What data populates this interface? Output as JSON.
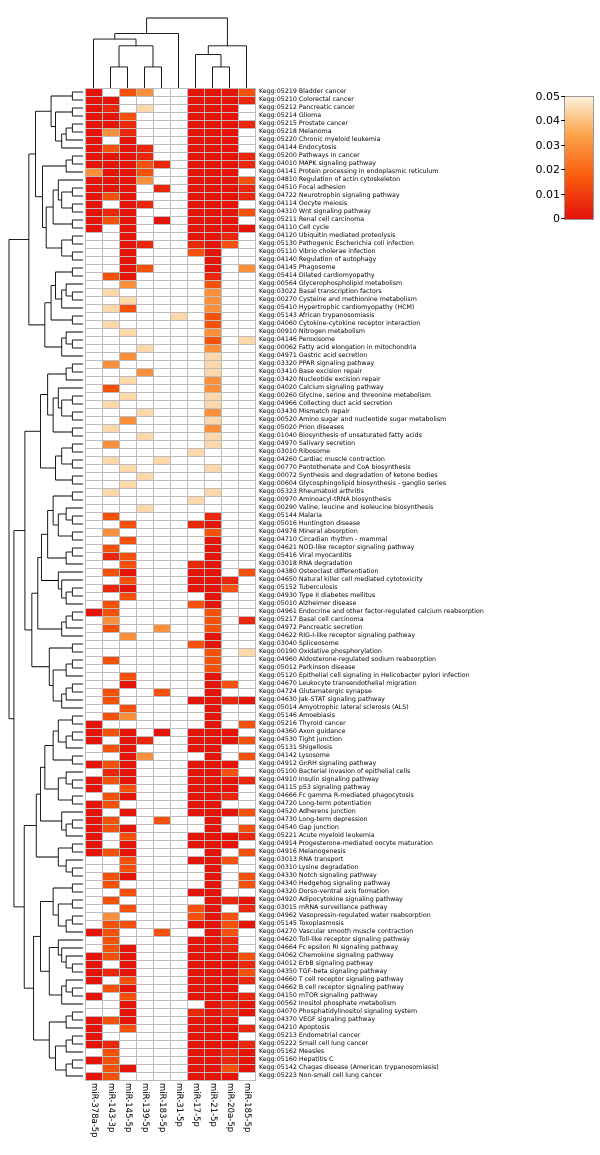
{
  "figure": {
    "description": "Clustered heatmap of KEGG pathway enrichment p-values for 10 miRNAs with row and column dendrograms and a color key"
  },
  "chart_data": {
    "type": "heatmap",
    "vmax": 0.05,
    "legend": {
      "ticks": [
        "0.05",
        "0.04",
        "0.03",
        "0.02",
        "0.01",
        "0"
      ],
      "min": 0,
      "max": 0.05,
      "position": "top-right"
    },
    "colorscale_stops": [
      [
        0,
        "#e3120b"
      ],
      [
        0.35,
        "#f95d0e"
      ],
      [
        0.7,
        "#fca54e"
      ],
      [
        1,
        "#fdf1d9"
      ]
    ],
    "na_color": "#ffffff",
    "columns": [
      "miR-378a-5p",
      "miR-143-3p",
      "miR-145-5p",
      "miR-139-5p",
      "miR-183-5p",
      "miR-31-5p",
      "miR-17-5p",
      "miR-21-5p",
      "miR-20a-5p",
      "miR-185-5p"
    ],
    "col_tree": [
      [
        [
          0,
          [
            [
              1,
              2
            ],
            [
              3,
              4
            ]
          ]
        ],
        5
      ],
      [
        [
          6,
          [
            7,
            8
          ]
        ],
        9
      ]
    ],
    "rows": [
      "Kegg:05219 Bladder cancer",
      "Kegg:05210 Colorectal cancer",
      "Kegg:05212 Pancreatic cancer",
      "Kegg:05214 Glioma",
      "Kegg:05215 Prostate cancer",
      "Kegg:05218 Melanoma",
      "Kegg:05220 Chronic myeloid leukemia",
      "Kegg:04144 Endocytosis",
      "Kegg:05200 Pathways in cancer",
      "Kegg:04010 MAPK signaling pathway",
      "Kegg:04141 Protein processing in endoplasmic reticulum",
      "Kegg:04810 Regulation of actin cytoskeleton",
      "Kegg:04510 Focal adhesion",
      "Kegg:04722 Neurotrophin signaling pathway",
      "Kegg:04114 Oocyte meiosis",
      "Kegg:04310 Wnt signaling pathway",
      "Kegg:05211 Renal cell carcinoma",
      "Kegg:04110 Cell cycle",
      "Kegg:04120 Ubiquitin mediated proteolysis",
      "Kegg:05130 Pathogenic Escherichia coli infection",
      "Kegg:05110 Vibrio cholerae infection",
      "Kegg:04140 Regulation of autophagy",
      "Kegg:04145 Phagosome",
      "Kegg:05414 Dilated cardiomyopathy",
      "Kegg:00564 Glycerophospholipid metabolism",
      "Kegg:03022 Basal transcription factors",
      "Kegg:00270 Cysteine and methionine metabolism",
      "Kegg:05410 Hypertrophic cardiomyopathy (HCM)",
      "Kegg:05143 African trypanosomiasis",
      "Kegg:04060 Cytokine-cytokine receptor interaction",
      "Kegg:00910 Nitrogen metabolism",
      "Kegg:04146 Peroxisome",
      "Kegg:00062 Fatty acid elongation in mitochondria",
      "Kegg:04971 Gastric acid secretion",
      "Kegg:03320 PPAR signaling pathway",
      "Kegg:03410 Base excision repair",
      "Kegg:03420 Nucleotide excision repair",
      "Kegg:04020 Calcium signaling pathway",
      "Kegg:00260 Glycine, serine and threonine metabolism",
      "Kegg:04966 Collecting duct acid secretion",
      "Kegg:03430 Mismatch repair",
      "Kegg:00520 Amino sugar and nucleotide sugar metabolism",
      "Kegg:05020 Prion diseases",
      "Kegg:01040 Biosynthesis of unsaturated fatty acids",
      "Kegg:04970 Salivary secretion",
      "Kegg:03010 Ribosome",
      "Kegg:04260 Cardiac muscle contraction",
      "Kegg:00770 Pantothenate and CoA biosynthesis",
      "Kegg:00072 Synthesis and degradation of ketone bodies",
      "Kegg:00604 Glycosphingolipid biosynthesis - ganglio series",
      "Kegg:05323 Rheumatoid arthritis",
      "Kegg:00970 Aminoacyl-tRNA biosynthesis",
      "Kegg:00290 Valine, leucine and isoleucine biosynthesis",
      "Kegg:05144 Malaria",
      "Kegg:05016 Huntington disease",
      "Kegg:04978 Mineral absorption",
      "Kegg:04710 Circadian rhythm - mammal",
      "Kegg:04621 NOD-like receptor signaling pathway",
      "Kegg:05416 Viral myocarditis",
      "Kegg:03018 RNA degradation",
      "Kegg:04380 Osteoclast differentiation",
      "Kegg:04650 Natural killer cell mediated cytotoxicity",
      "Kegg:05152 Tuberculosis",
      "Kegg:04930 Type II diabetes mellitus",
      "Kegg:05010 Alzheimer disease",
      "Kegg:04961 Endocrine and other factor-regulated calcium reabsorption",
      "Kegg:05217 Basal cell carcinoma",
      "Kegg:04972 Pancreatic secretion",
      "Kegg:04622 RIG-I-like receptor signaling pathway",
      "Kegg:03040 Spliceosome",
      "Kegg:00190 Oxidative phosphorylation",
      "Kegg:04960 Aldosterone-regulated sodium reabsorption",
      "Kegg:05012 Parkinson disease",
      "Kegg:05120 Epithelial cell signaling in Helicobacter pylori infection",
      "Kegg:04670 Leukocyte transendothelial migration",
      "Kegg:04724 Glutamatergic synapse",
      "Kegg:04630 Jak-STAT signaling pathway",
      "Kegg:05014 Amyotrophic lateral sclerosis (ALS)",
      "Kegg:05146 Amoebiasis",
      "Kegg:05216 Thyroid cancer",
      "Kegg:04360 Axon guidance",
      "Kegg:04530 Tight junction",
      "Kegg:05131 Shigellosis",
      "Kegg:04142 Lysosome",
      "Kegg:04912 GnRH signaling pathway",
      "Kegg:05100 Bacterial invasion of epithelial cells",
      "Kegg:04910 Insulin signaling pathway",
      "Kegg:04115 p53 signaling pathway",
      "Kegg:04666 Fc gamma R-mediated phagocytosis",
      "Kegg:04720 Long-term potentiation",
      "Kegg:04520 Adherens junction",
      "Kegg:04730 Long-term depression",
      "Kegg:04540 Gap junction",
      "Kegg:05221 Acute myeloid leukemia",
      "Kegg:04914 Progesterone-mediated oocyte maturation",
      "Kegg:04916 Melanogenesis",
      "Kegg:03013 RNA transport",
      "Kegg:00310 Lysine degradation",
      "Kegg:04330 Notch signaling pathway",
      "Kegg:04340 Hedgehog signaling pathway",
      "Kegg:04320 Dorso-ventral axis formation",
      "Kegg:04920 Adipocytokine signaling pathway",
      "Kegg:03015 mRNA surveillance pathway",
      "Kegg:04962 Vasopressin-regulated water reabsorption",
      "Kegg:05145 Toxoplasmosis",
      "Kegg:04270 Vascular smooth muscle contraction",
      "Kegg:04620 Toll-like receptor signaling pathway",
      "Kegg:04664 Fc epsilon RI signaling pathway",
      "Kegg:04062 Chemokine signaling pathway",
      "Kegg:04012 ErbB signaling pathway",
      "Kegg:04350 TGF-beta signaling pathway",
      "Kegg:04660 T cell receptor signaling pathway",
      "Kegg:04662 B cell receptor signaling pathway",
      "Kegg:04150 mTOR signaling pathway",
      "Kegg:00562 Inositol phosphate metabolism",
      "Kegg:04070 Phosphatidylinositol signaling system",
      "Kegg:04370 VEGF signaling pathway",
      "Kegg:04210 Apoptosis",
      "Kegg:05213 Endometrial cancer",
      "Kegg:05222 Small cell lung cancer",
      "Kegg:05162 Measles",
      "Kegg:05160 Hepatitis C",
      "Kegg:05142 Chagas disease (American trypanosomiasis)",
      "Kegg:05223 Non-small cell lung cancer"
    ],
    "value_key": {
      "R": 0.0005,
      "r": 0.005,
      "o": 0.015,
      "l": 0.03,
      "c": 0.045,
      ".": null
    },
    "cells": [
      "R.ol..RRRo",
      "RR....RRRr",
      "Rr.c..RRR.",
      "RRo...RRR.",
      "RRr...RRRr",
      "Rlr...RRR.",
      "R.R...RRR.",
      "RoRr..RRR.",
      "RRRr..RRRr",
      "RRRor.RRRr",
      "lRRo..RRR.",
      "RRRl..RRRo",
      "RRR.r.RRRr",
      "RoR...RRRr",
      "R.Rr..RRR.",
      "RrR...RRRo",
      "RoR.R.RRR.",
      "R.R...RRRR",
      "..R...RRr.",
      "..Rr..rRo.",
      "..R...oR..",
      "..R....R..",
      "..Ro...R.l",
      ".oR....r..",
      "..l....o..",
      ".c.....l..",
      "..c....l..",
      ".co....l..",
      ".....c.o..",
      ".c.....o..",
      "..c....l..",
      ".......o.c",
      "...c...l..",
      "..l....c..",
      ".l.....c..",
      "...l...c..",
      "..c....l..",
      ".o.....l..",
      "..c....c..",
      ".c.....c..",
      "...c...l..",
      "..l....c..",
      ".c.....l..",
      "...c...c..",
      ".l.....c..",
      "......c...",
      ".c..c.....",
      "..c....c..",
      "...c......",
      "..c.......",
      ".c.....c..",
      "......c...",
      "...c......",
      ".o.....r..",
      "..o...rR..",
      ".l.....o..",
      "..o....R..",
      ".o.....R..",
      ".ro....R..",
      "..o...rR..",
      ".oR...RR.o",
      "..o...RRr.",
      ".rR...RRo.",
      "..o....R..",
      ".o....oR..",
      "Ro.....o..",
      ".l.....o.r",
      ".o..l..o..",
      "..l....R..",
      "......oR..",
      ".......o.c",
      ".o.....o..",
      ".......o..",
      "..o....R..",
      "..R....Ro.",
      ".o..o..R..",
      ".o....RRrR",
      "..o....R..",
      ".ol....R..",
      "R......R.o",
      "RoR.R.RRR.",
      "R.Rr..RRRo",
      ".oR...RR..",
      "..Rl...R.o",
      "RoR...RRR.",
      ".rR...RRo.",
      "RoR...RRRr",
      "R.o...RRR.",
      ".oR...RRr.",
      "Ro....RR..",
      "R.R...RRRo",
      "Ro..o..R..",
      "RoR....R.o",
      "R.o...RRRr",
      "R.R...RRR.",
      "RoR....R.o",
      "..o...RRo.",
      "..o....R..",
      ".oR....R.o",
      ".o.....R.o",
      "..o...RR..",
      ".o.....RrR",
      "..o...oR.r",
      ".l....oRo.",
      ".oo...RRoR",
      "Ro..o..Ro.",
      ".o....RRr.",
      ".oR...RRr.",
      "RoR...RRRo",
      "R.R...RRRr",
      "RrR...RRRo",
      "R.o...RRRr",
      ".oR...RRR.",
      "R.o...RRRr",
      "..R....RrR",
      "..R...rRrR",
      "RoR...RRR.",
      "R.o...RRRr",
      "R.....RRR.",
      "Rr....RRRr",
      ".o....RRrR",
      "Ro....RRrR",
      ".oR...RRoR",
      "Ro....RRR."
    ]
  }
}
